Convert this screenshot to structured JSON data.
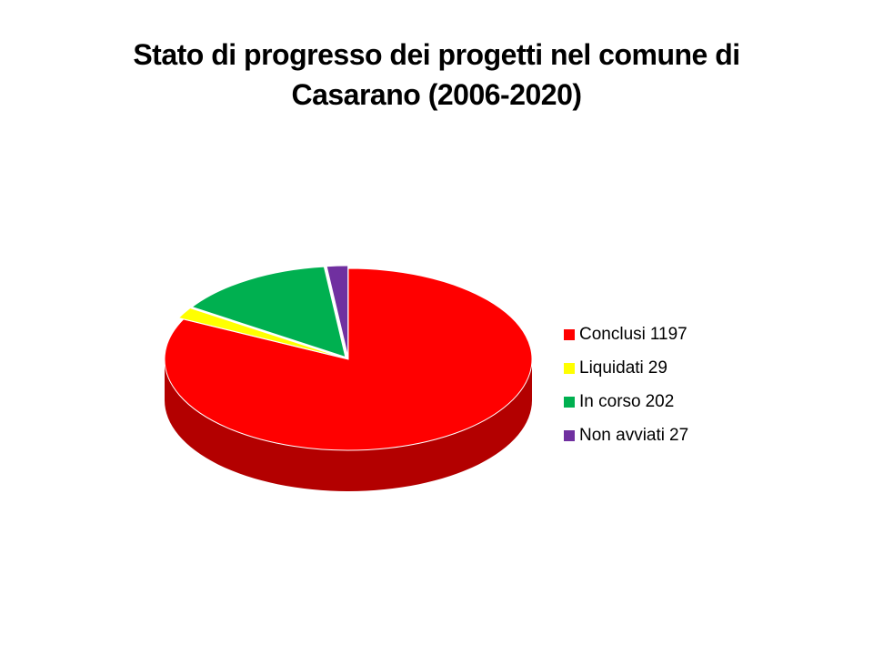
{
  "chart_data": {
    "type": "pie",
    "title": "Stato di progresso dei progetti nel comune di Casarano (2006-2020)",
    "categories": [
      "Conclusi",
      "Liquidati",
      "In corso",
      "Non avviati"
    ],
    "values": [
      1197,
      29,
      202,
      27
    ],
    "colors": [
      "#ff0000",
      "#ffff00",
      "#00b050",
      "#7030a0"
    ],
    "legend": "right"
  }
}
